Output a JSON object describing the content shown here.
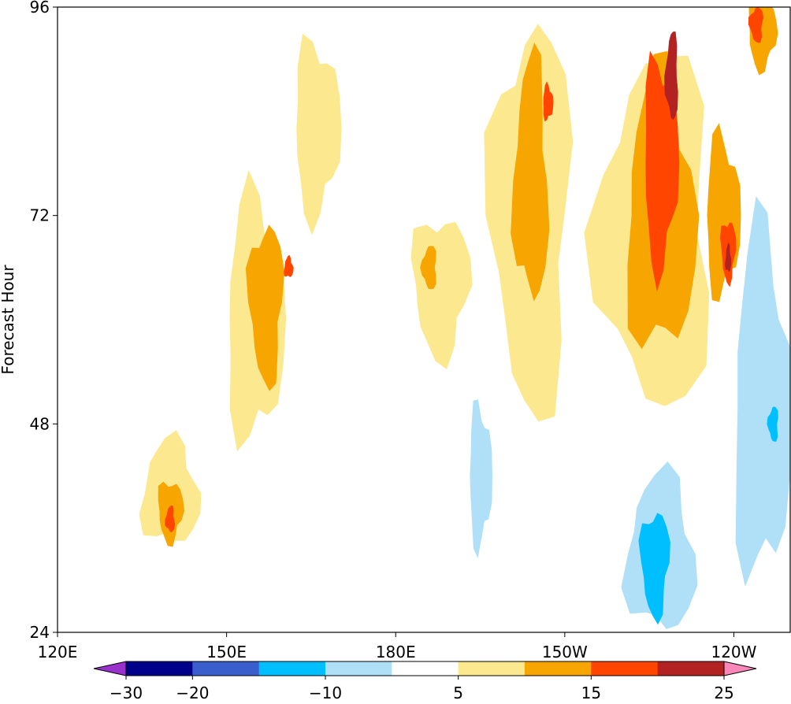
{
  "chart_data": {
    "type": "heatmap",
    "title": "",
    "xlabel": "",
    "ylabel": "Forecast Hour",
    "x_ticks": [
      "120E",
      "150E",
      "180E",
      "150W",
      "120W"
    ],
    "x_tick_values": [
      120,
      150,
      180,
      210,
      240
    ],
    "xlim": [
      120,
      250
    ],
    "y_ticks": [
      "24",
      "48",
      "72",
      "96"
    ],
    "y_tick_values": [
      24,
      48,
      72,
      96
    ],
    "ylim": [
      24,
      96
    ],
    "colorbar": {
      "levels": [
        -30,
        -25,
        -20,
        -15,
        -10,
        -5,
        5,
        10,
        15,
        20,
        25,
        30
      ],
      "tick_labels": [
        "−30",
        "−20",
        "−10",
        "5",
        "15",
        "25"
      ],
      "tick_values": [
        -30,
        -20,
        -10,
        5,
        15,
        25
      ],
      "colors": [
        "#9932cc",
        "#00008b",
        "#3a5fcd",
        "#00bfff",
        "#b0e0f8",
        "#ffffff",
        "#fbe88f",
        "#f7a500",
        "#ff4500",
        "#b22222",
        "#f987b7"
      ],
      "extend": "both",
      "orientation": "horizontal"
    },
    "fields": [
      {
        "level": 5,
        "lon": 140,
        "hour": 40,
        "lonw": 5,
        "hw": 6
      },
      {
        "level": 10,
        "lon": 140,
        "hour": 38,
        "lonw": 2.2,
        "hw": 3.5
      },
      {
        "level": 15,
        "lon": 140,
        "hour": 37,
        "lonw": 0.8,
        "hw": 1.5
      },
      {
        "level": 5,
        "lon": 155,
        "hour": 60,
        "lonw": 5,
        "hw": 14
      },
      {
        "level": 10,
        "lon": 157,
        "hour": 62,
        "lonw": 3,
        "hw": 9
      },
      {
        "level": 15,
        "lon": 161,
        "hour": 66,
        "lonw": 0.8,
        "hw": 1.2
      },
      {
        "level": 5,
        "lon": 166,
        "hour": 82,
        "lonw": 4,
        "hw": 10
      },
      {
        "level": 5,
        "lon": 188,
        "hour": 64,
        "lonw": 5,
        "hw": 8
      },
      {
        "level": 10,
        "lon": 186,
        "hour": 66,
        "lonw": 1.3,
        "hw": 2.5
      },
      {
        "level": 5,
        "lon": 204,
        "hour": 72,
        "lonw": 7,
        "hw": 22
      },
      {
        "level": 10,
        "lon": 204,
        "hour": 76,
        "lonw": 3,
        "hw": 14
      },
      {
        "level": 15,
        "lon": 207,
        "hour": 85,
        "lonw": 0.9,
        "hw": 2
      },
      {
        "level": 5,
        "lon": 226,
        "hour": 70,
        "lonw": 10,
        "hw": 20
      },
      {
        "level": 10,
        "lon": 227,
        "hour": 72,
        "lonw": 6,
        "hw": 16
      },
      {
        "level": 15,
        "lon": 227,
        "hour": 78,
        "lonw": 3,
        "hw": 12
      },
      {
        "level": 20,
        "lon": 229,
        "hour": 88,
        "lonw": 1.1,
        "hw": 5
      },
      {
        "level": 10,
        "lon": 238,
        "hour": 72,
        "lonw": 3,
        "hw": 9
      },
      {
        "level": 15,
        "lon": 239,
        "hour": 68,
        "lonw": 1.3,
        "hw": 3.5
      },
      {
        "level": 20,
        "lon": 239,
        "hour": 67,
        "lonw": 0.5,
        "hw": 1.6
      },
      {
        "level": 10,
        "lon": 245,
        "hour": 93,
        "lonw": 2.5,
        "hw": 4
      },
      {
        "level": 15,
        "lon": 244,
        "hour": 94,
        "lonw": 1.2,
        "hw": 2
      },
      {
        "level": -5,
        "lon": 227,
        "hour": 33,
        "lonw": 6,
        "hw": 9
      },
      {
        "level": -10,
        "lon": 226,
        "hour": 32,
        "lonw": 2.5,
        "hw": 6
      },
      {
        "level": -5,
        "lon": 245,
        "hour": 50,
        "lonw": 5,
        "hw": 20
      },
      {
        "level": -10,
        "lon": 247,
        "hour": 48,
        "lonw": 0.9,
        "hw": 2
      },
      {
        "level": -5,
        "lon": 195,
        "hour": 42,
        "lonw": 2,
        "hw": 8
      }
    ]
  }
}
